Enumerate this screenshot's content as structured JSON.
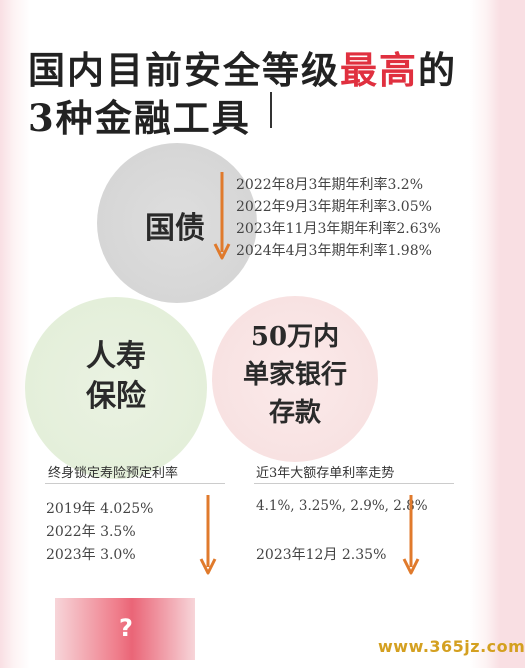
{
  "title": {
    "line1_prefix": "国内目前安全等级",
    "line1_highlight": "最高",
    "line1_suffix": "的",
    "line2": "3种金融工具"
  },
  "colors": {
    "highlight": "#e0303f",
    "arrow": "#e07a2c",
    "question_box": "#ea6577",
    "watermark": "#d4a020"
  },
  "bonds": {
    "label": "国债",
    "rates": [
      "2022年8月3年期年利率3.2%",
      "2022年9月3年期年利率3.05%",
      "2023年11月3年期年利率2.63%",
      "2024年4月3年期年利率1.98%"
    ]
  },
  "insurance": {
    "label_line1": "人寿",
    "label_line2": "保险",
    "heading": "终身锁定寿险预定利率",
    "rates": [
      "2019年 4.025%",
      "2022年 3.5%",
      "2023年 3.0%"
    ]
  },
  "deposit": {
    "label_line1": "50万内",
    "label_line2": "单家银行",
    "label_line3": "存款",
    "heading": "近3年大额存单利率走势",
    "rates_line": "4.1%, 3.25%, 2.9%, 2.8%",
    "latest": "2023年12月 2.35%"
  },
  "bottom": {
    "question": "?"
  },
  "watermark": "www.365jz.com"
}
